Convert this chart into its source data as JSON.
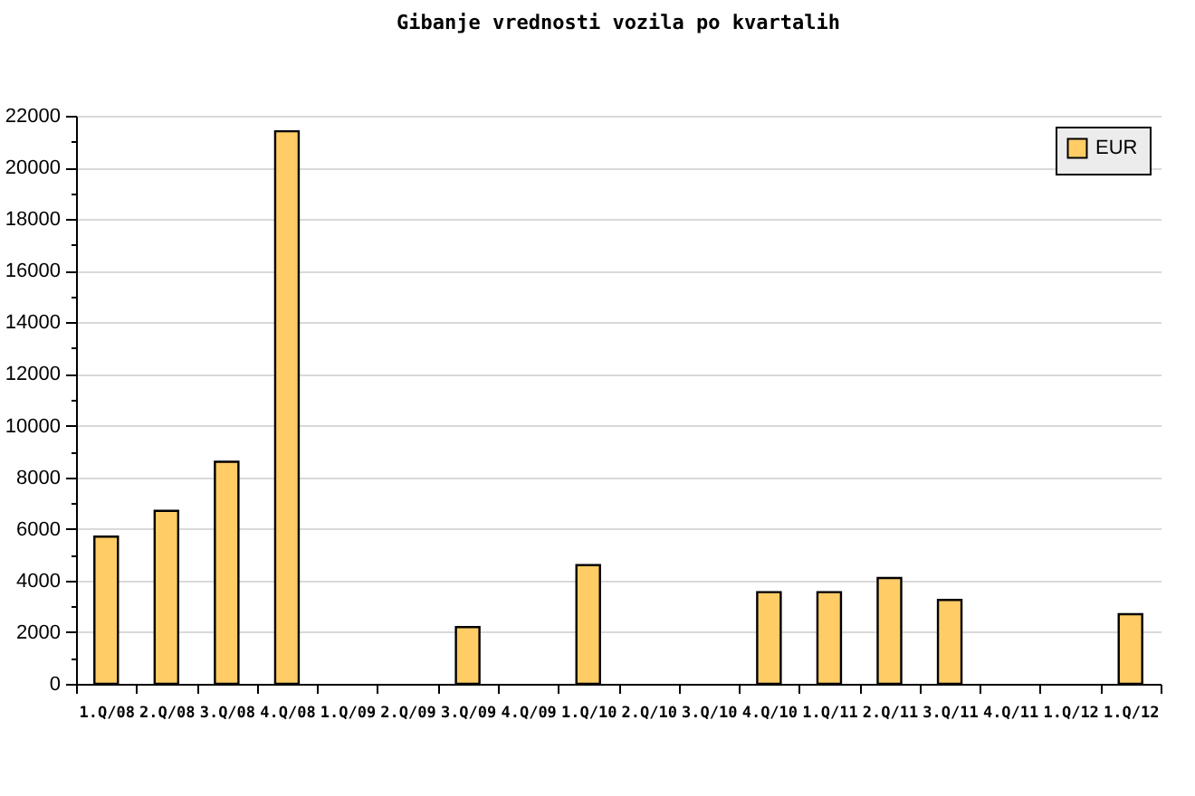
{
  "chart_data": {
    "type": "bar",
    "title": "Gibanje vrednosti vozila po kvartalih",
    "categories": [
      "1.Q/08",
      "2.Q/08",
      "3.Q/08",
      "4.Q/08",
      "1.Q/09",
      "2.Q/09",
      "3.Q/09",
      "4.Q/09",
      "1.Q/10",
      "2.Q/10",
      "3.Q/10",
      "4.Q/10",
      "1.Q/11",
      "2.Q/11",
      "3.Q/11",
      "4.Q/11",
      "1.Q/12",
      "1.Q/12"
    ],
    "series": [
      {
        "name": "EUR",
        "color": "#ffcc66",
        "values": [
          5700,
          6700,
          8600,
          21400,
          null,
          null,
          2200,
          null,
          4600,
          null,
          null,
          3550,
          3550,
          4100,
          3250,
          null,
          null,
          2700
        ]
      }
    ],
    "ylim": [
      0,
      22000
    ],
    "yticks": [
      0,
      {
        "value": 1000,
        "label": null
      },
      2000,
      {
        "value": 3000,
        "label": null
      },
      4000,
      {
        "value": 5000,
        "label": null
      },
      6000,
      {
        "value": 7000,
        "label": null
      },
      8000,
      {
        "value": 9000,
        "label": null
      },
      10000,
      {
        "value": 11000,
        "label": null
      },
      12000,
      {
        "value": 13000,
        "label": null
      },
      14000,
      {
        "value": 15000,
        "label": null
      },
      16000,
      {
        "value": 17000,
        "label": null
      },
      18000,
      {
        "value": 19000,
        "label": null
      },
      20000,
      {
        "value": 21000,
        "label": null
      },
      22000
    ],
    "grid": "y",
    "legend": "top right"
  }
}
